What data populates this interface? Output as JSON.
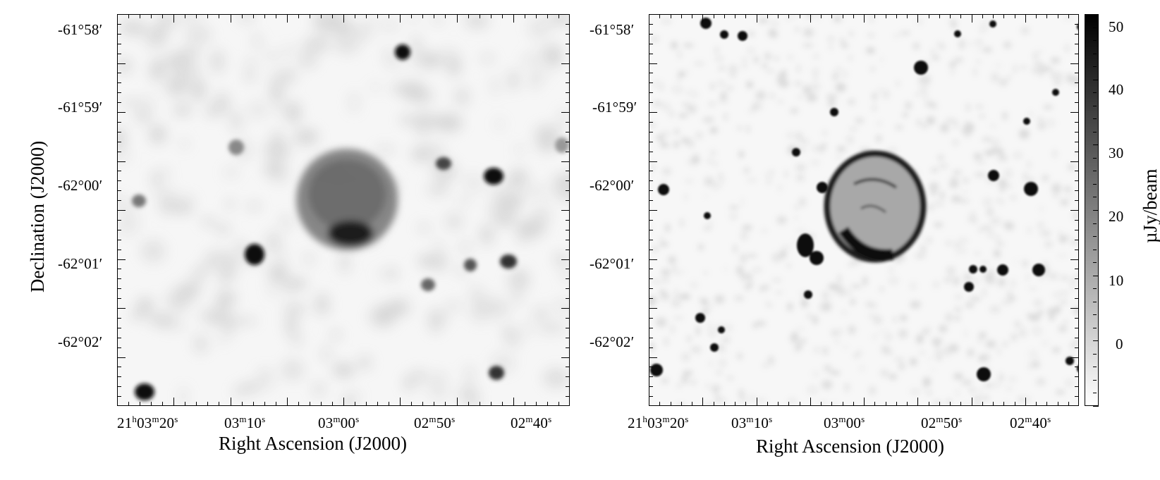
{
  "left_panel": {
    "dec_ticks": [
      "-61°58′",
      "-61°59′",
      "-62°00′",
      "-62°01′",
      "-62°02′"
    ],
    "ra_ticks": [
      "21h03m20s",
      "03m10s",
      "03m00s",
      "02m50s",
      "02m40s"
    ],
    "xlabel": "Right Ascension (J2000)",
    "ylabel": "Declination (J2000)"
  },
  "right_panel": {
    "dec_ticks": [
      "-61°58′",
      "-61°59′",
      "-62°00′",
      "-62°01′",
      "-62°02′"
    ],
    "ra_ticks": [
      "21h03m20s",
      "03m10s",
      "03m00s",
      "02m50s",
      "02m40s"
    ],
    "xlabel": "Right Ascension (J2000)"
  },
  "colorbar": {
    "label": "µJy/beam",
    "ticks": [
      "50",
      "40",
      "30",
      "20",
      "10",
      "0"
    ],
    "colormap": "grayscale (white low, black high)"
  },
  "colors": {
    "foreground": "#000000",
    "background": "#ffffff"
  }
}
